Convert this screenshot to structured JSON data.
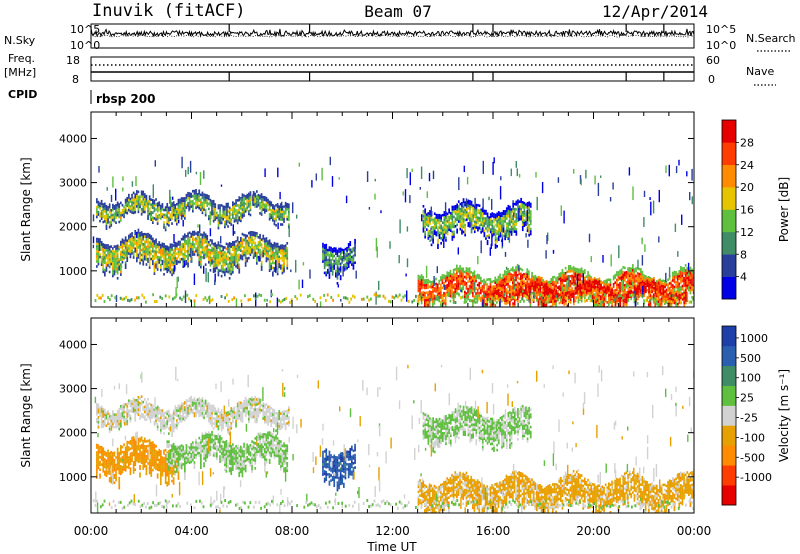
{
  "header": {
    "title": "Inuvik (fitACF)",
    "beam": "Beam 07",
    "date": "12/Apr/2014"
  },
  "time_axis": {
    "label": "Time UT",
    "ticks": [
      "00:00",
      "04:00",
      "08:00",
      "12:00",
      "16:00",
      "20:00",
      "00:00"
    ],
    "range_hours": [
      0,
      24
    ]
  },
  "top_panels": {
    "nsky": {
      "left_label": "N.Sky",
      "left_ticks": [
        "10^5",
        "10^0"
      ],
      "right_label": "N.Search",
      "right_ticks": [
        "10^5",
        "10^0"
      ]
    },
    "freq": {
      "left_label_line1": "Freq.",
      "left_label_line2": "[MHz]",
      "left_ticks": [
        "18",
        "8"
      ],
      "right_label": "Nave",
      "right_ticks": [
        "60",
        "0"
      ]
    },
    "cpid": {
      "label": "CPID",
      "value": "rbsp 200"
    }
  },
  "chart_data": [
    {
      "type": "heatmap",
      "ylabel": "Slant Range [km]",
      "xlabel": "",
      "ylim": [
        180,
        4600
      ],
      "yticks": [
        1000,
        2000,
        3000,
        4000
      ],
      "colorbar": {
        "label": "Power [dB]",
        "ticks": [
          "4",
          "8",
          "12",
          "16",
          "20",
          "24",
          "28"
        ],
        "range": [
          0,
          30
        ],
        "colors": [
          "#0000e6",
          "#2a3f9c",
          "#3f8c66",
          "#5fbf3f",
          "#e6c400",
          "#ff8c00",
          "#ff3d00",
          "#e60000"
        ]
      },
      "regions": [
        {
          "t0": 0.2,
          "t1": 7.9,
          "r0": 2150,
          "r1": 2700,
          "value": 14
        },
        {
          "t0": 0.2,
          "t1": 7.8,
          "r0": 1000,
          "r1": 1800,
          "value": 15
        },
        {
          "t0": 9.2,
          "t1": 10.5,
          "r0": 900,
          "r1": 1700,
          "value": 10
        },
        {
          "t0": 13.2,
          "t1": 17.5,
          "r0": 1700,
          "r1": 2500,
          "value": 13
        },
        {
          "t0": 13.0,
          "t1": 24.0,
          "r0": 200,
          "r1": 1000,
          "value": 24
        },
        {
          "t0": 16.0,
          "t1": 23.7,
          "r0": 350,
          "r1": 750,
          "value": 29
        }
      ]
    },
    {
      "type": "heatmap",
      "ylabel": "Slant Range [km]",
      "xlabel": "Time UT",
      "ylim": [
        180,
        4600
      ],
      "yticks": [
        1000,
        2000,
        3000,
        4000
      ],
      "colorbar": {
        "label": "Velocity [m s⁻¹]",
        "ticks": [
          "1000",
          "500",
          "100",
          "25",
          "-25",
          "-100",
          "-500",
          "-1000"
        ],
        "range": [
          -1000,
          1000
        ],
        "colors": [
          "#e60000",
          "#ff3d00",
          "#ff8c00",
          "#e6a000",
          "#d2d2d2",
          "#5fbf3f",
          "#3f8c66",
          "#2a5fb0",
          "#1f3fa8"
        ]
      },
      "regions": [
        {
          "t0": 0.2,
          "t1": 7.9,
          "r0": 2150,
          "r1": 2700,
          "value": 0
        },
        {
          "t0": 0.2,
          "t1": 3.5,
          "r0": 900,
          "r1": 1800,
          "value": -300
        },
        {
          "t0": 3.0,
          "t1": 7.8,
          "r0": 1200,
          "r1": 1900,
          "value": 150
        },
        {
          "t0": 9.2,
          "t1": 10.5,
          "r0": 900,
          "r1": 1700,
          "value": 700
        },
        {
          "t0": 13.2,
          "t1": 17.5,
          "r0": 1700,
          "r1": 2500,
          "value": 150
        },
        {
          "t0": 13.0,
          "t1": 24.0,
          "r0": 200,
          "r1": 1000,
          "value": -200
        }
      ]
    }
  ]
}
